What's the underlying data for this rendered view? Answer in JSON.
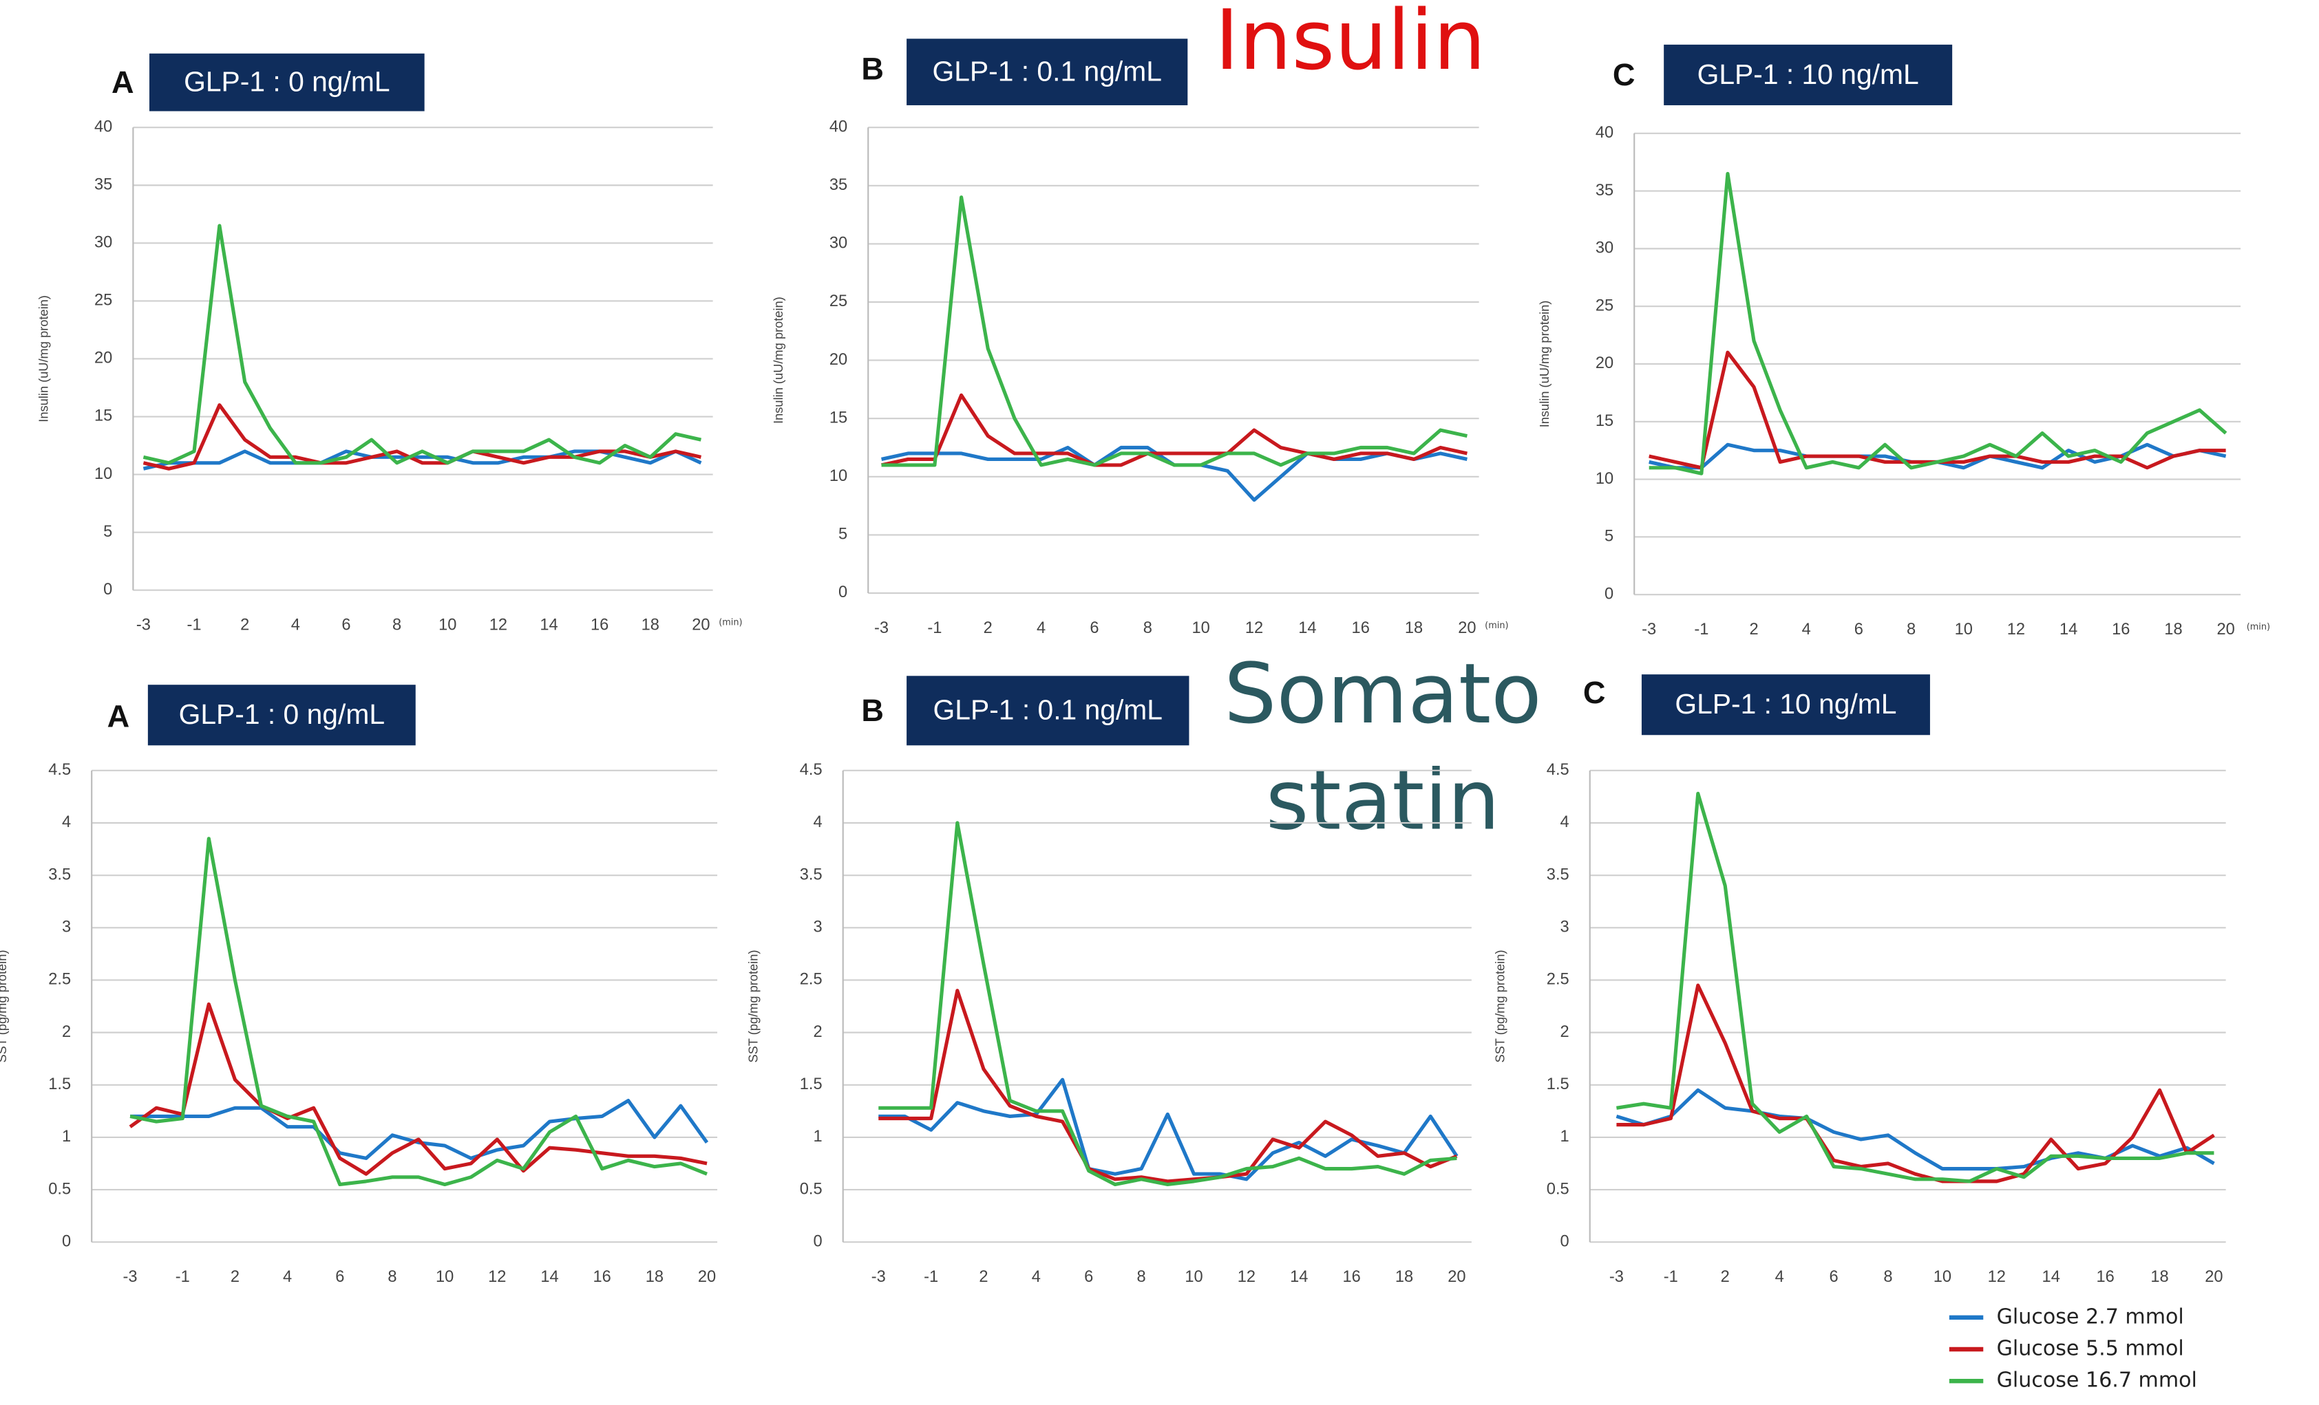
{
  "section_labels": {
    "insulin": "Insulin",
    "somatostatin": [
      "Somato",
      "statin"
    ]
  },
  "chart_data": [
    {
      "type": "line",
      "panel": "A",
      "title": "GLP-1 : 0 ng/mL",
      "ylabel": "Insulin (uU/mg protein)",
      "x_unit": "(min)",
      "categories": [
        "-3",
        null,
        "-1",
        null,
        "2",
        null,
        "4",
        null,
        "6",
        null,
        "8",
        null,
        "10",
        null,
        "12",
        null,
        "14",
        null,
        "16",
        null,
        "18",
        null,
        "20"
      ],
      "ylim": [
        0,
        40
      ],
      "yticks": [
        0,
        5,
        10,
        15,
        20,
        25,
        30,
        35,
        40
      ],
      "grid": true,
      "series": [
        {
          "color": "#1f78c8",
          "values": [
            10.5,
            11,
            11,
            11,
            12,
            11,
            11,
            11,
            12,
            11.5,
            11.5,
            11.5,
            11.5,
            11,
            11,
            11.5,
            11.5,
            12,
            12,
            11.5,
            11,
            12,
            11
          ]
        },
        {
          "color": "#c8191e",
          "values": [
            11,
            10.5,
            11,
            16,
            13,
            11.5,
            11.5,
            11,
            11,
            11.5,
            12,
            11,
            11,
            12,
            11.5,
            11,
            11.5,
            11.5,
            12,
            12,
            11.5,
            12,
            11.5
          ]
        },
        {
          "color": "#3cb44b",
          "values": [
            11.5,
            11,
            12,
            31.5,
            18,
            14,
            11,
            11,
            11.5,
            13,
            11,
            12,
            11,
            12,
            12,
            12,
            13,
            11.5,
            11,
            12.5,
            11.5,
            13.5,
            13
          ]
        }
      ]
    },
    {
      "type": "line",
      "panel": "B",
      "title": "GLP-1 : 0.1 ng/mL",
      "ylabel": "Insulin (uU/mg protein)",
      "x_unit": "(min)",
      "categories": [
        "-3",
        null,
        "-1",
        null,
        "2",
        null,
        "4",
        null,
        "6",
        null,
        "8",
        null,
        "10",
        null,
        "12",
        null,
        "14",
        null,
        "16",
        null,
        "18",
        null,
        "20"
      ],
      "ylim": [
        0,
        40
      ],
      "yticks": [
        0,
        5,
        10,
        15,
        20,
        25,
        30,
        35,
        40
      ],
      "grid": true,
      "series": [
        {
          "color": "#1f78c8",
          "values": [
            11.5,
            12,
            12,
            12,
            11.5,
            11.5,
            11.5,
            12.5,
            11,
            12.5,
            12.5,
            11,
            11,
            10.5,
            8,
            10,
            12,
            11.5,
            11.5,
            12,
            11.5,
            12,
            11.5
          ]
        },
        {
          "color": "#c8191e",
          "values": [
            11,
            11.5,
            11.5,
            17,
            13.5,
            12,
            12,
            12,
            11,
            11,
            12,
            12,
            12,
            12,
            14,
            12.5,
            12,
            11.5,
            12,
            12,
            11.5,
            12.5,
            12
          ]
        },
        {
          "color": "#3cb44b",
          "values": [
            11,
            11,
            11,
            34,
            21,
            15,
            11,
            11.5,
            11,
            12,
            12,
            11,
            11,
            12,
            12,
            11,
            12,
            12,
            12.5,
            12.5,
            12,
            14,
            13.5
          ]
        }
      ]
    },
    {
      "type": "line",
      "panel": "C",
      "title": "GLP-1 : 10 ng/mL",
      "ylabel": "Insulin (uU/mg protein)",
      "x_unit": "(min)",
      "categories": [
        "-3",
        null,
        "-1",
        null,
        "2",
        null,
        "4",
        null,
        "6",
        null,
        "8",
        null,
        "10",
        null,
        "12",
        null,
        "14",
        null,
        "16",
        null,
        "18",
        null,
        "20"
      ],
      "ylim": [
        0,
        40
      ],
      "yticks": [
        0,
        5,
        10,
        15,
        20,
        25,
        30,
        35,
        40
      ],
      "grid": true,
      "series": [
        {
          "color": "#1f78c8",
          "values": [
            11.5,
            11,
            11,
            13,
            12.5,
            12.5,
            12,
            12,
            12,
            12,
            11.5,
            11.5,
            11,
            12,
            11.5,
            11,
            12.5,
            11.5,
            12,
            13,
            12,
            12.5,
            12
          ]
        },
        {
          "color": "#c8191e",
          "values": [
            12,
            11.5,
            11,
            21,
            18,
            11.5,
            12,
            12,
            12,
            11.5,
            11.5,
            11.5,
            11.5,
            12,
            12,
            11.5,
            11.5,
            12,
            12,
            11,
            12,
            12.5,
            12.5
          ]
        },
        {
          "color": "#3cb44b",
          "values": [
            11,
            11,
            10.5,
            36.5,
            22,
            16,
            11,
            11.5,
            11,
            13,
            11,
            11.5,
            12,
            13,
            12,
            14,
            12,
            12.5,
            11.5,
            14,
            15,
            16,
            14
          ]
        }
      ]
    },
    {
      "type": "line",
      "panel": "A",
      "title": "GLP-1 : 0 ng/mL",
      "ylabel": "SST (pg/mg protein)",
      "categories": [
        "-3",
        null,
        "-1",
        null,
        "2",
        null,
        "4",
        null,
        "6",
        null,
        "8",
        null,
        "10",
        null,
        "12",
        null,
        "14",
        null,
        "16",
        null,
        "18",
        null,
        "20"
      ],
      "ylim": [
        0,
        4.5
      ],
      "yticks": [
        0,
        0.5,
        1,
        1.5,
        2,
        2.5,
        3,
        3.5,
        4,
        4.5
      ],
      "grid": true,
      "series": [
        {
          "color": "#1f78c8",
          "values": [
            1.2,
            1.2,
            1.2,
            1.2,
            1.28,
            1.28,
            1.1,
            1.1,
            0.85,
            0.8,
            1.02,
            0.95,
            0.92,
            0.8,
            0.88,
            0.92,
            1.15,
            1.18,
            1.2,
            1.35,
            1.0,
            1.3,
            0.95
          ]
        },
        {
          "color": "#c8191e",
          "values": [
            1.1,
            1.28,
            1.22,
            2.27,
            1.55,
            1.3,
            1.18,
            1.28,
            0.8,
            0.65,
            0.85,
            0.98,
            0.7,
            0.75,
            0.98,
            0.68,
            0.9,
            0.88,
            0.85,
            0.82,
            0.82,
            0.8,
            0.75
          ]
        },
        {
          "color": "#3cb44b",
          "values": [
            1.2,
            1.15,
            1.18,
            3.85,
            2.5,
            1.3,
            1.2,
            1.15,
            0.55,
            0.58,
            0.62,
            0.62,
            0.55,
            0.62,
            0.78,
            0.7,
            1.05,
            1.2,
            0.7,
            0.78,
            0.72,
            0.75,
            0.65
          ]
        }
      ]
    },
    {
      "type": "line",
      "panel": "B",
      "title": "GLP-1 : 0.1 ng/mL",
      "ylabel": "SST (pg/mg protein)",
      "categories": [
        "-3",
        null,
        "-1",
        null,
        "2",
        null,
        "4",
        null,
        "6",
        null,
        "8",
        null,
        "10",
        null,
        "12",
        null,
        "14",
        null,
        "16",
        null,
        "18",
        null,
        "20"
      ],
      "ylim": [
        0,
        4.5
      ],
      "yticks": [
        0,
        0.5,
        1,
        1.5,
        2,
        2.5,
        3,
        3.5,
        4,
        4.5
      ],
      "grid": true,
      "series": [
        {
          "color": "#1f78c8",
          "values": [
            1.2,
            1.2,
            1.07,
            1.33,
            1.25,
            1.2,
            1.22,
            1.55,
            0.7,
            0.65,
            0.7,
            1.22,
            0.65,
            0.65,
            0.6,
            0.85,
            0.95,
            0.82,
            0.98,
            0.92,
            0.85,
            1.2,
            0.82
          ]
        },
        {
          "color": "#c8191e",
          "values": [
            1.18,
            1.18,
            1.18,
            2.4,
            1.65,
            1.3,
            1.2,
            1.15,
            0.7,
            0.6,
            0.62,
            0.58,
            0.6,
            0.62,
            0.65,
            0.98,
            0.9,
            1.15,
            1.02,
            0.82,
            0.85,
            0.72,
            0.82
          ]
        },
        {
          "color": "#3cb44b",
          "values": [
            1.28,
            1.28,
            1.28,
            4.0,
            2.65,
            1.35,
            1.25,
            1.25,
            0.68,
            0.55,
            0.6,
            0.55,
            0.58,
            0.62,
            0.7,
            0.72,
            0.8,
            0.7,
            0.7,
            0.72,
            0.65,
            0.78,
            0.8
          ]
        }
      ]
    },
    {
      "type": "line",
      "panel": "C",
      "title": "GLP-1 : 10 ng/mL",
      "ylabel": "SST (pg/mg protein)",
      "categories": [
        "-3",
        null,
        "-1",
        null,
        "2",
        null,
        "4",
        null,
        "6",
        null,
        "8",
        null,
        "10",
        null,
        "12",
        null,
        "14",
        null,
        "16",
        null,
        "18",
        null,
        "20"
      ],
      "ylim": [
        0,
        4.5
      ],
      "yticks": [
        0,
        0.5,
        1,
        1.5,
        2,
        2.5,
        3,
        3.5,
        4,
        4.5
      ],
      "grid": true,
      "series": [
        {
          "name": "Glucose  2.7 mmol",
          "color": "#1f78c8",
          "values": [
            1.2,
            1.12,
            1.2,
            1.45,
            1.28,
            1.25,
            1.2,
            1.18,
            1.05,
            0.98,
            1.02,
            0.85,
            0.7,
            0.7,
            0.7,
            0.72,
            0.8,
            0.85,
            0.8,
            0.92,
            0.82,
            0.9,
            0.75
          ]
        },
        {
          "name": "Glucose  5.5 mmol",
          "color": "#c8191e",
          "values": [
            1.12,
            1.12,
            1.18,
            2.45,
            1.9,
            1.25,
            1.18,
            1.18,
            0.78,
            0.72,
            0.75,
            0.65,
            0.58,
            0.58,
            0.58,
            0.65,
            0.98,
            0.7,
            0.75,
            1.0,
            1.45,
            0.85,
            1.02
          ]
        },
        {
          "name": "Glucose  16.7 mmol",
          "color": "#3cb44b",
          "values": [
            1.28,
            1.32,
            1.28,
            4.28,
            3.4,
            1.32,
            1.05,
            1.2,
            0.72,
            0.7,
            0.65,
            0.6,
            0.6,
            0.58,
            0.7,
            0.62,
            0.82,
            0.82,
            0.8,
            0.8,
            0.8,
            0.85,
            0.85
          ]
        }
      ]
    }
  ]
}
